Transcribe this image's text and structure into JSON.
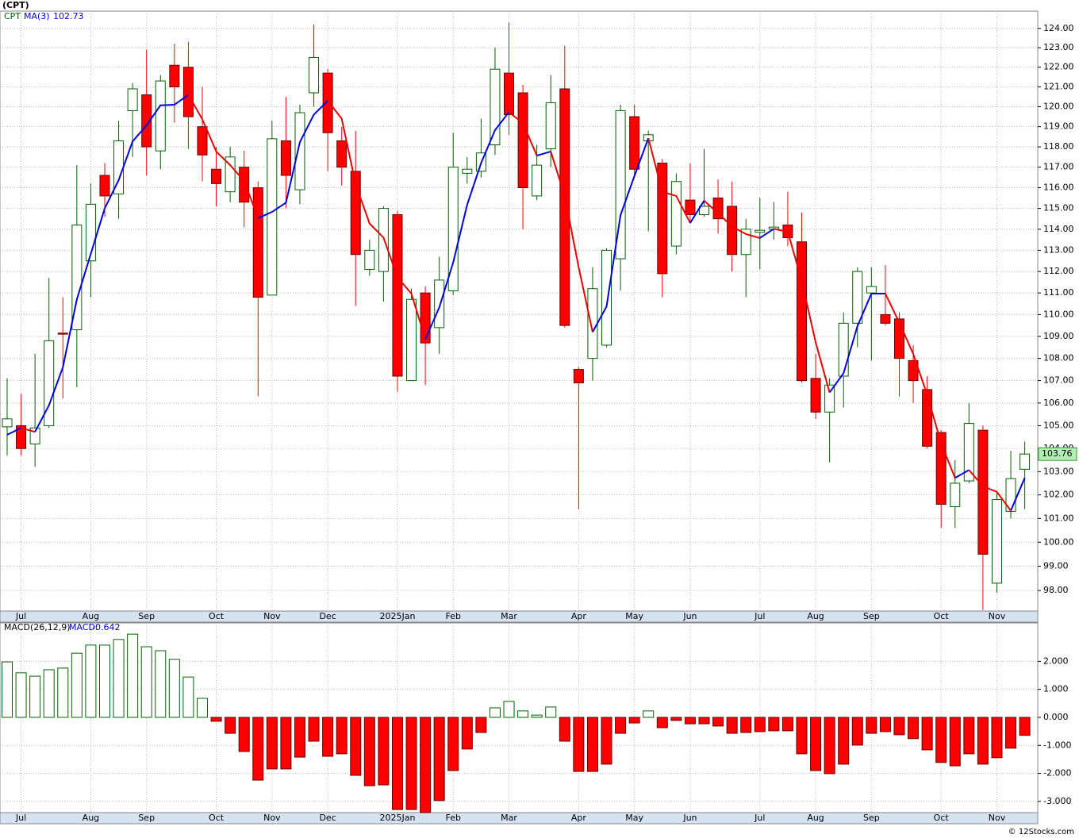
{
  "chart_data": [
    {
      "type": "candlestick",
      "title": "(CPT)",
      "name": "CPT",
      "log": true,
      "grid": true,
      "up_color": "#006400",
      "down_color": "#ff0000",
      "last_tag_color": "#b3f0b3",
      "categories": [
        null,
        "Jul",
        null,
        null,
        null,
        null,
        "Aug",
        null,
        null,
        null,
        "Sep",
        null,
        null,
        null,
        null,
        "Oct",
        null,
        null,
        null,
        "Nov",
        null,
        null,
        null,
        "Dec",
        null,
        null,
        null,
        null,
        "2025Jan",
        null,
        null,
        null,
        "Feb",
        null,
        null,
        null,
        "Mar",
        null,
        null,
        null,
        null,
        "Apr",
        null,
        null,
        null,
        "May",
        null,
        null,
        null,
        "Jun",
        null,
        null,
        null,
        null,
        "Jul",
        null,
        null,
        null,
        "Aug",
        null,
        null,
        null,
        "Sep",
        null,
        null,
        null,
        null,
        "Oct",
        null,
        null,
        null,
        "Nov",
        null,
        null
      ],
      "open": [
        104.95,
        105.0,
        104.2,
        105.0,
        109.15,
        109.3,
        112.5,
        116.6,
        115.7,
        119.8,
        120.6,
        117.8,
        122.1,
        122.0,
        119.0,
        116.9,
        115.8,
        117.0,
        116.0,
        110.9,
        118.3,
        115.9,
        120.7,
        121.7,
        118.3,
        116.8,
        112.1,
        112.0,
        114.7,
        107.0,
        111.0,
        109.4,
        111.1,
        116.7,
        116.8,
        118.1,
        121.7,
        120.7,
        115.6,
        117.9,
        120.9,
        107.5,
        108.0,
        108.6,
        112.6,
        119.5,
        118.3,
        117.2,
        113.2,
        115.4,
        114.7,
        115.5,
        115.1,
        112.8,
        113.85,
        114.0,
        114.2,
        113.4,
        107.1,
        105.6,
        107.2,
        109.6,
        111.0,
        110.0,
        109.8,
        107.9,
        106.6,
        104.7,
        101.5,
        102.6,
        104.8,
        98.3,
        101.3,
        103.1
      ],
      "high": [
        107.1,
        106.4,
        108.2,
        111.7,
        110.8,
        117.1,
        116.2,
        117.2,
        119.3,
        121.2,
        122.9,
        121.6,
        123.2,
        123.3,
        121.0,
        118.0,
        118.0,
        117.8,
        116.3,
        119.3,
        120.5,
        120.1,
        124.2,
        121.9,
        119.0,
        118.8,
        113.5,
        115.1,
        114.9,
        111.2,
        111.3,
        112.7,
        118.7,
        117.5,
        119.4,
        123.0,
        124.3,
        121.1,
        118.1,
        121.6,
        123.1,
        107.6,
        112.2,
        113.1,
        120.1,
        120.1,
        118.8,
        117.4,
        116.7,
        117.2,
        117.9,
        116.4,
        116.3,
        114.5,
        115.5,
        115.3,
        115.8,
        114.8,
        108.2,
        107.1,
        110.1,
        112.2,
        112.2,
        112.3,
        110.1,
        108.6,
        107.2,
        104.8,
        103.5,
        106.0,
        105.0,
        102.1,
        103.9,
        104.3
      ],
      "low": [
        103.7,
        103.7,
        103.2,
        104.9,
        106.2,
        106.7,
        110.8,
        114.6,
        114.5,
        117.5,
        116.6,
        116.9,
        119.2,
        117.9,
        116.3,
        115.1,
        115.3,
        114.1,
        106.3,
        110.9,
        115.0,
        115.2,
        120.0,
        116.8,
        116.1,
        110.4,
        111.8,
        110.6,
        106.5,
        107.0,
        106.8,
        108.2,
        110.9,
        116.2,
        116.5,
        117.6,
        118.6,
        114.0,
        115.4,
        117.0,
        109.4,
        101.4,
        107.0,
        108.5,
        111.1,
        116.6,
        113.9,
        110.8,
        112.8,
        114.3,
        114.6,
        113.8,
        112.0,
        110.8,
        112.1,
        113.5,
        113.2,
        106.9,
        105.3,
        103.4,
        105.8,
        108.5,
        107.9,
        109.5,
        106.3,
        106.0,
        104.0,
        100.6,
        100.6,
        102.5,
        97.2,
        97.9,
        101.0,
        101.4
      ],
      "close": [
        105.3,
        104.0,
        104.9,
        108.8,
        109.1,
        114.2,
        115.2,
        115.6,
        118.3,
        120.9,
        118.0,
        121.3,
        121.0,
        119.5,
        117.6,
        116.2,
        117.5,
        115.3,
        110.8,
        118.4,
        116.6,
        119.7,
        122.5,
        118.7,
        117.0,
        112.8,
        113.0,
        115.0,
        107.2,
        110.7,
        108.7,
        111.6,
        117.0,
        116.9,
        117.7,
        121.9,
        119.6,
        116.0,
        117.1,
        120.2,
        109.5,
        106.9,
        111.2,
        113.0,
        119.8,
        116.9,
        118.6,
        111.9,
        116.3,
        114.7,
        115.1,
        114.5,
        112.8,
        114.0,
        113.95,
        114.1,
        113.6,
        107.0,
        105.6,
        106.8,
        109.6,
        112.0,
        111.3,
        109.6,
        108.0,
        107.0,
        104.1,
        101.6,
        102.5,
        105.1,
        99.5,
        101.8,
        102.7,
        103.76
      ],
      "series": [
        {
          "name": "MA(3)",
          "color": "#0000dd",
          "down_color": "#ee0000",
          "values": [
            104.6,
            104.9,
            104.73,
            105.9,
            107.6,
            110.7,
            112.83,
            115.0,
            116.37,
            118.27,
            119.07,
            120.07,
            120.1,
            120.6,
            119.37,
            117.77,
            117.1,
            116.33,
            114.53,
            114.83,
            115.27,
            118.23,
            119.6,
            120.3,
            119.4,
            116.17,
            114.27,
            113.6,
            111.73,
            110.97,
            108.87,
            110.33,
            112.43,
            115.17,
            117.2,
            118.83,
            119.73,
            119.17,
            117.57,
            117.77,
            115.6,
            112.2,
            109.2,
            110.37,
            114.67,
            116.57,
            118.43,
            115.8,
            115.6,
            114.3,
            115.37,
            114.77,
            114.13,
            113.77,
            113.58,
            114.02,
            113.88,
            111.57,
            108.73,
            106.47,
            107.33,
            109.47,
            110.97,
            110.97,
            109.63,
            108.2,
            106.37,
            104.23,
            102.73,
            103.07,
            102.37,
            102.13,
            101.33,
            102.73
          ]
        }
      ],
      "ylim": [
        97.16,
        124.9
      ],
      "yticks": [
        {
          "value": 98,
          "label": "98.00"
        },
        {
          "value": 99,
          "label": "99.00"
        },
        {
          "value": 100,
          "label": "100.00"
        },
        {
          "value": 101,
          "label": "101.00"
        },
        {
          "value": 102,
          "label": "102.00"
        },
        {
          "value": 103,
          "label": "103.00"
        },
        {
          "value": 104,
          "label": "104.00"
        },
        {
          "value": 105,
          "label": "105.00"
        },
        {
          "value": 106,
          "label": "106.00"
        },
        {
          "value": 107,
          "label": "107.00"
        },
        {
          "value": 108,
          "label": "108.00"
        },
        {
          "value": 109,
          "label": "109.00"
        },
        {
          "value": 110,
          "label": "110.00"
        },
        {
          "value": 111,
          "label": "111.00"
        },
        {
          "value": 112,
          "label": "112.00"
        },
        {
          "value": 113,
          "label": "113.00"
        },
        {
          "value": 114,
          "label": "114.00"
        },
        {
          "value": 115,
          "label": "115.00"
        },
        {
          "value": 116,
          "label": "116.00"
        },
        {
          "value": 117,
          "label": "117.00"
        },
        {
          "value": 118,
          "label": "118.00"
        },
        {
          "value": 119,
          "label": "119.00"
        },
        {
          "value": 120,
          "label": "120.00"
        },
        {
          "value": 121,
          "label": "121.00"
        },
        {
          "value": 122,
          "label": "122.00"
        },
        {
          "value": 123,
          "label": "123.00"
        },
        {
          "value": 124,
          "label": "124.00"
        }
      ]
    },
    {
      "type": "bar",
      "title": "MACD(26,12,9)",
      "grid": true,
      "categories": [
        null,
        "Jul",
        null,
        null,
        null,
        null,
        "Aug",
        null,
        null,
        null,
        "Sep",
        null,
        null,
        null,
        null,
        "Oct",
        null,
        null,
        null,
        "Nov",
        null,
        null,
        null,
        "Dec",
        null,
        null,
        null,
        null,
        "2025Jan",
        null,
        null,
        null,
        "Feb",
        null,
        null,
        null,
        "Mar",
        null,
        null,
        null,
        null,
        "Apr",
        null,
        null,
        null,
        "May",
        null,
        null,
        null,
        "Jun",
        null,
        null,
        null,
        null,
        "Jul",
        null,
        null,
        null,
        "Aug",
        null,
        null,
        null,
        "Sep",
        null,
        null,
        null,
        null,
        "Oct",
        null,
        null,
        null,
        "Nov",
        null,
        null
      ],
      "series": [
        {
          "name": "MACD:",
          "color": "#006400",
          "down_color": "#ff0000",
          "label_color": "#0000dd",
          "values": [
            1.98,
            1.59,
            1.47,
            1.7,
            1.76,
            2.29,
            2.58,
            2.58,
            2.78,
            2.97,
            2.52,
            2.38,
            2.07,
            1.44,
            0.68,
            -0.14,
            -0.57,
            -1.22,
            -2.24,
            -1.84,
            -1.84,
            -1.42,
            -0.85,
            -1.39,
            -1.3,
            -2.07,
            -2.44,
            -2.41,
            -3.29,
            -3.29,
            -3.4,
            -2.97,
            -1.9,
            -1.13,
            -0.54,
            0.34,
            0.57,
            0.23,
            0.08,
            0.37,
            -0.85,
            -1.93,
            -1.93,
            -1.67,
            -0.57,
            -0.2,
            0.23,
            -0.37,
            -0.11,
            -0.23,
            -0.23,
            -0.31,
            -0.57,
            -0.54,
            -0.51,
            -0.48,
            -0.48,
            -1.3,
            -1.9,
            -2.01,
            -1.67,
            -0.99,
            -0.57,
            -0.51,
            -0.62,
            -0.76,
            -1.16,
            -1.61,
            -1.73,
            -1.3,
            -1.67,
            -1.44,
            -1.1,
            -0.642
          ]
        }
      ],
      "ylim": [
        -3.4,
        3.37
      ],
      "yticks": [
        {
          "value": -3,
          "label": "-3.000"
        },
        {
          "value": -2,
          "label": "-2.000"
        },
        {
          "value": -1,
          "label": "-1.000"
        },
        {
          "value": 0,
          "label": "0.000"
        },
        {
          "value": 1,
          "label": "1.000"
        },
        {
          "value": 2,
          "label": "2.000"
        }
      ]
    }
  ],
  "footer": "© 12Stocks.com"
}
